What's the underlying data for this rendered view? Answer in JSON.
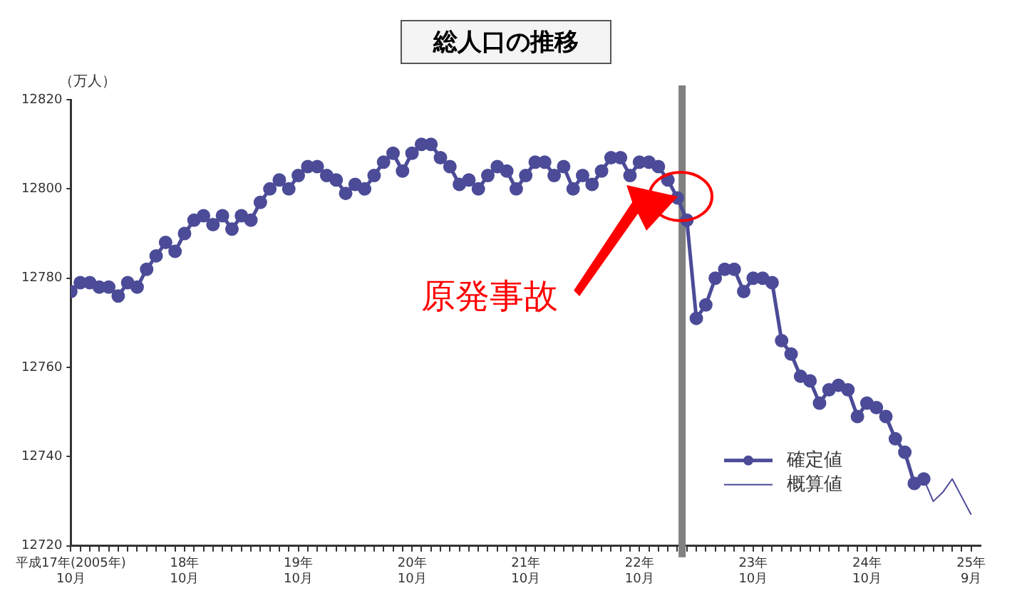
{
  "chart_data": {
    "type": "line",
    "title": "総人口の推移",
    "ylabel": "（万人）",
    "xlim": [
      "2005-10",
      "2013-10"
    ],
    "ylim": [
      12720,
      12820
    ],
    "yticks": [
      12720,
      12740,
      12760,
      12780,
      12800,
      12820
    ],
    "xticks": [
      {
        "value": "2005-10",
        "label": "平成17年(2005年)\n10月"
      },
      {
        "value": "2006-10",
        "label": "18年\n10月"
      },
      {
        "value": "2007-10",
        "label": "19年\n10月"
      },
      {
        "value": "2008-10",
        "label": "20年\n10月"
      },
      {
        "value": "2009-10",
        "label": "21年\n10月"
      },
      {
        "value": "2010-10",
        "label": "22年\n10月"
      },
      {
        "value": "2011-10",
        "label": "23年\n10月"
      },
      {
        "value": "2012-10",
        "label": "24年\n10月"
      },
      {
        "value": "2013-09",
        "label": "25年\n9月"
      }
    ],
    "series": [
      {
        "name": "確定値",
        "color": "#4b4b98",
        "marker": "circle",
        "x": [
          "2005-10",
          "2005-11",
          "2005-12",
          "2006-01",
          "2006-02",
          "2006-03",
          "2006-04",
          "2006-05",
          "2006-06",
          "2006-07",
          "2006-08",
          "2006-09",
          "2006-10",
          "2006-11",
          "2006-12",
          "2007-01",
          "2007-02",
          "2007-03",
          "2007-04",
          "2007-05",
          "2007-06",
          "2007-07",
          "2007-08",
          "2007-09",
          "2007-10",
          "2007-11",
          "2007-12",
          "2008-01",
          "2008-02",
          "2008-03",
          "2008-04",
          "2008-05",
          "2008-06",
          "2008-07",
          "2008-08",
          "2008-09",
          "2008-10",
          "2008-11",
          "2008-12",
          "2009-01",
          "2009-02",
          "2009-03",
          "2009-04",
          "2009-05",
          "2009-06",
          "2009-07",
          "2009-08",
          "2009-09",
          "2009-10",
          "2009-11",
          "2009-12",
          "2010-01",
          "2010-02",
          "2010-03",
          "2010-04",
          "2010-05",
          "2010-06",
          "2010-07",
          "2010-08",
          "2010-09",
          "2010-10",
          "2010-11",
          "2010-12",
          "2011-01",
          "2011-02",
          "2011-03",
          "2011-04",
          "2011-05",
          "2011-06",
          "2011-07",
          "2011-08",
          "2011-09",
          "2011-10",
          "2011-11",
          "2011-12",
          "2012-01",
          "2012-02",
          "2012-03",
          "2012-04",
          "2012-05",
          "2012-06",
          "2012-07",
          "2012-08",
          "2012-09",
          "2012-10",
          "2012-11",
          "2012-12",
          "2013-01",
          "2013-02",
          "2013-03",
          "2013-04"
        ],
        "values": [
          12777,
          12779,
          12779,
          12778,
          12778,
          12776,
          12779,
          12778,
          12782,
          12785,
          12788,
          12786,
          12790,
          12793,
          12794,
          12792,
          12794,
          12791,
          12794,
          12793,
          12797,
          12800,
          12802,
          12800,
          12803,
          12805,
          12805,
          12803,
          12802,
          12799,
          12801,
          12800,
          12803,
          12806,
          12808,
          12804,
          12808,
          12810,
          12810,
          12807,
          12805,
          12801,
          12802,
          12800,
          12803,
          12805,
          12804,
          12800,
          12803,
          12806,
          12806,
          12803,
          12805,
          12800,
          12803,
          12801,
          12804,
          12807,
          12807,
          12803,
          12806,
          12806,
          12805,
          12802,
          12798,
          12793,
          12771,
          12774,
          12780,
          12782,
          12782,
          12777,
          12780,
          12780,
          12779,
          12766,
          12763,
          12758,
          12757,
          12752,
          12755,
          12756,
          12755,
          12749,
          12752,
          12751,
          12749,
          12744,
          12741,
          12734,
          12735
        ]
      },
      {
        "name": "概算値",
        "color": "#4b4b98",
        "marker": "none",
        "x": [
          "2013-04",
          "2013-05",
          "2013-06",
          "2013-07",
          "2013-08",
          "2013-09"
        ],
        "values": [
          12735,
          12730,
          12732,
          12735,
          12731,
          12727
        ]
      }
    ],
    "ref_lines": [
      {
        "axis": "x",
        "value": "2011-02-15",
        "label": null,
        "color": "#808080"
      }
    ],
    "annotations": [
      "原発事故"
    ],
    "legend": "bottom right",
    "grid": false,
    "line_style": "solid"
  }
}
